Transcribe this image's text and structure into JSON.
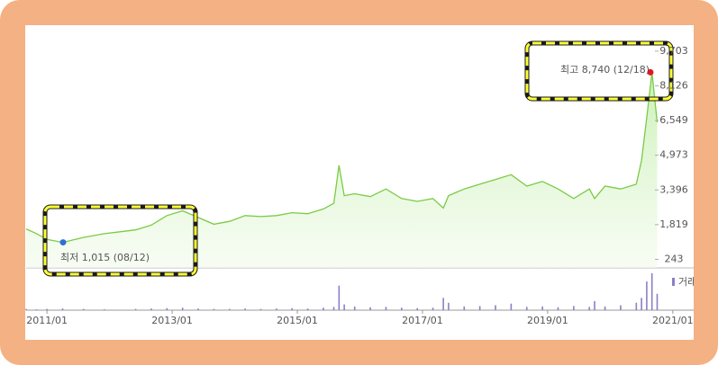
{
  "chart_data": {
    "type": "line",
    "x": [
      "2010/09",
      "2010/11",
      "2011/01",
      "2011/04",
      "2011/08",
      "2011/12",
      "2012/06",
      "2012/09",
      "2012/12",
      "2013/03",
      "2013/06",
      "2013/09",
      "2013/12",
      "2014/03",
      "2014/06",
      "2014/09",
      "2014/12",
      "2015/03",
      "2015/06",
      "2015/08",
      "2015/09",
      "2015/10",
      "2015/12",
      "2016/03",
      "2016/06",
      "2016/09",
      "2016/12",
      "2017/03",
      "2017/05",
      "2017/06",
      "2017/09",
      "2017/12",
      "2018/03",
      "2018/06",
      "2018/09",
      "2018/12",
      "2019/03",
      "2019/06",
      "2019/09",
      "2019/10",
      "2019/12",
      "2020/03",
      "2020/06",
      "2020/07",
      "2020/08",
      "2020/09",
      "2020/10"
    ],
    "series": [
      {
        "color": "#7acb45",
        "values": [
          1625,
          1409,
          1150,
          1015,
          1237,
          1409,
          1582,
          1798,
          2230,
          2446,
          2144,
          1841,
          1971,
          2230,
          2187,
          2230,
          2360,
          2317,
          2533,
          2792,
          4520,
          3137,
          3224,
          3094,
          3440,
          3008,
          2878,
          3008,
          2576,
          3137,
          3440,
          3656,
          3872,
          4088,
          3569,
          3785,
          3440,
          3008,
          3440,
          3008,
          3569,
          3440,
          3656,
          4736,
          6680,
          8740,
          6464
        ]
      },
      {
        "name": "거래",
        "color": "#8b7fc7",
        "values": [
          3,
          2,
          3,
          4,
          3,
          2,
          3,
          4,
          5,
          6,
          4,
          3,
          3,
          4,
          3,
          4,
          5,
          4,
          6,
          8,
          60,
          14,
          9,
          7,
          8,
          6,
          5,
          6,
          30,
          18,
          9,
          10,
          12,
          16,
          8,
          9,
          7,
          10,
          8,
          22,
          9,
          12,
          18,
          30,
          70,
          90,
          40
        ]
      }
    ],
    "xlim": [
      "2010/09",
      "2021/05"
    ],
    "xticks": [
      "2011/01",
      "2013/01",
      "2015/01",
      "2017/01",
      "2019/01",
      "2021/01"
    ],
    "ylim": [
      -146,
      10800
    ],
    "yticks": [
      243,
      {
        "value": 1819,
        "label": "1,819"
      },
      {
        "value": 3396,
        "label": "3,396"
      },
      {
        "value": 4973,
        "label": "4,973"
      },
      {
        "value": 6549,
        "label": "6,549"
      },
      {
        "value": 8126,
        "label": "8,126"
      },
      {
        "value": 9703,
        "label": "9,703"
      }
    ],
    "high": {
      "label": "최고 8,740 (12/18)",
      "value": 8740,
      "color": "#e8141b"
    },
    "low": {
      "label": "최저 1,015 (08/12)",
      "value": 1015,
      "color": "#2f6fd6"
    }
  }
}
